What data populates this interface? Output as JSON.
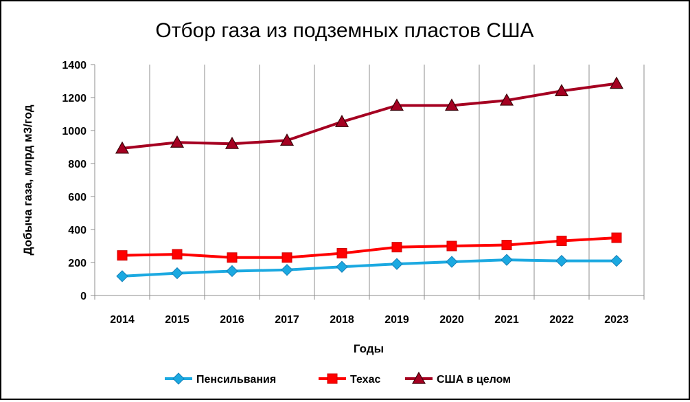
{
  "chart_data": {
    "type": "line",
    "title": "Отбор газа из подземных пластов США",
    "xlabel": "Годы",
    "ylabel": "Добыча газа, млрд м3/год",
    "categories": [
      "2014",
      "2015",
      "2016",
      "2017",
      "2018",
      "2019",
      "2020",
      "2021",
      "2022",
      "2023"
    ],
    "ylim": [
      0,
      1400
    ],
    "yticks": [
      0,
      200,
      400,
      600,
      800,
      1000,
      1200,
      1400
    ],
    "grid": "vertical",
    "legend_position": "bottom",
    "series": [
      {
        "name": "Пенсильвания",
        "color": "#1BA9E1",
        "marker": "diamond",
        "values": [
          117,
          135,
          148,
          155,
          174,
          191,
          204,
          216,
          210,
          210
        ]
      },
      {
        "name": "Техас",
        "color": "#FF0000",
        "marker": "square",
        "values": [
          243,
          250,
          230,
          230,
          256,
          293,
          300,
          306,
          331,
          350
        ]
      },
      {
        "name": "США в целом",
        "color": "#A50021",
        "marker": "triangle",
        "values": [
          892,
          928,
          920,
          940,
          1053,
          1152,
          1152,
          1183,
          1240,
          1285
        ]
      }
    ]
  }
}
